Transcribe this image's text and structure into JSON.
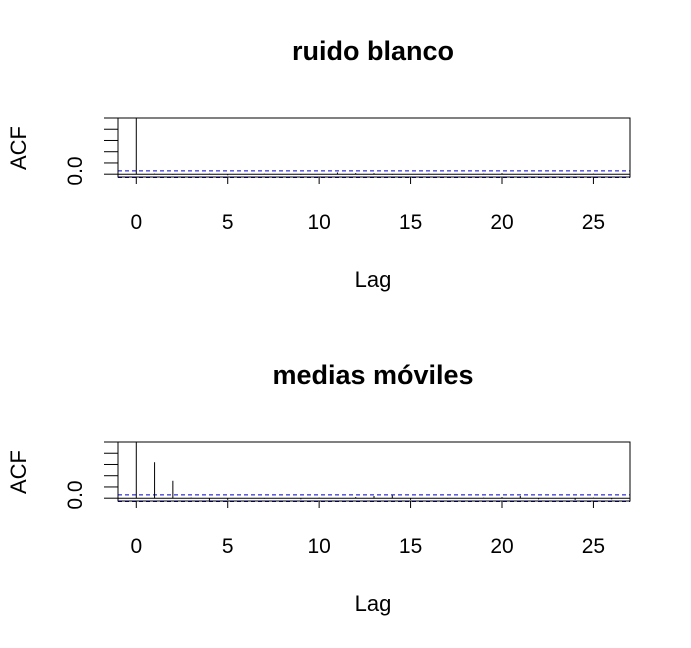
{
  "chart_data": [
    {
      "type": "bar",
      "title": "ruido blanco",
      "xlabel": "Lag",
      "ylabel": "ACF",
      "xlim": [
        -1,
        27
      ],
      "ylim": [
        -0.05,
        1.0
      ],
      "x_ticks": [
        0,
        5,
        10,
        15,
        20,
        25
      ],
      "y_tick_label": "0.0",
      "conf_limit": 0.06,
      "colors": {
        "acf_line": "#000000",
        "conf_line": "#0000cc"
      },
      "lags": [
        0,
        1,
        2,
        3,
        4,
        5,
        6,
        7,
        8,
        9,
        10,
        11,
        12,
        13,
        14,
        15,
        16,
        17,
        18,
        19,
        20,
        21,
        22,
        23,
        24,
        25,
        26
      ],
      "values": [
        1.0,
        0.01,
        -0.01,
        0.0,
        0.01,
        -0.02,
        0.0,
        0.01,
        0.0,
        -0.01,
        0.0,
        0.03,
        0.02,
        0.02,
        -0.01,
        0.0,
        0.01,
        -0.01,
        0.0,
        0.01,
        0.02,
        0.0,
        -0.01,
        0.0,
        -0.01,
        0.01,
        0.0
      ]
    },
    {
      "type": "bar",
      "title": "medias móviles",
      "xlabel": "Lag",
      "ylabel": "ACF",
      "xlim": [
        -1,
        27
      ],
      "ylim": [
        -0.05,
        1.0
      ],
      "x_ticks": [
        0,
        5,
        10,
        15,
        20,
        25
      ],
      "y_tick_label": "0.0",
      "conf_limit": 0.06,
      "colors": {
        "acf_line": "#000000",
        "conf_line": "#0000cc"
      },
      "lags": [
        0,
        1,
        2,
        3,
        4,
        5,
        6,
        7,
        8,
        9,
        10,
        11,
        12,
        13,
        14,
        15,
        16,
        17,
        18,
        19,
        20,
        21,
        22,
        23,
        24,
        25,
        26
      ],
      "values": [
        1.0,
        0.64,
        0.31,
        0.01,
        -0.04,
        -0.03,
        0.0,
        -0.01,
        0.0,
        -0.02,
        0.01,
        0.0,
        0.02,
        0.04,
        0.05,
        -0.03,
        0.0,
        -0.01,
        0.0,
        0.01,
        0.02,
        0.04,
        -0.02,
        0.0,
        -0.03,
        0.01,
        -0.02
      ]
    }
  ]
}
